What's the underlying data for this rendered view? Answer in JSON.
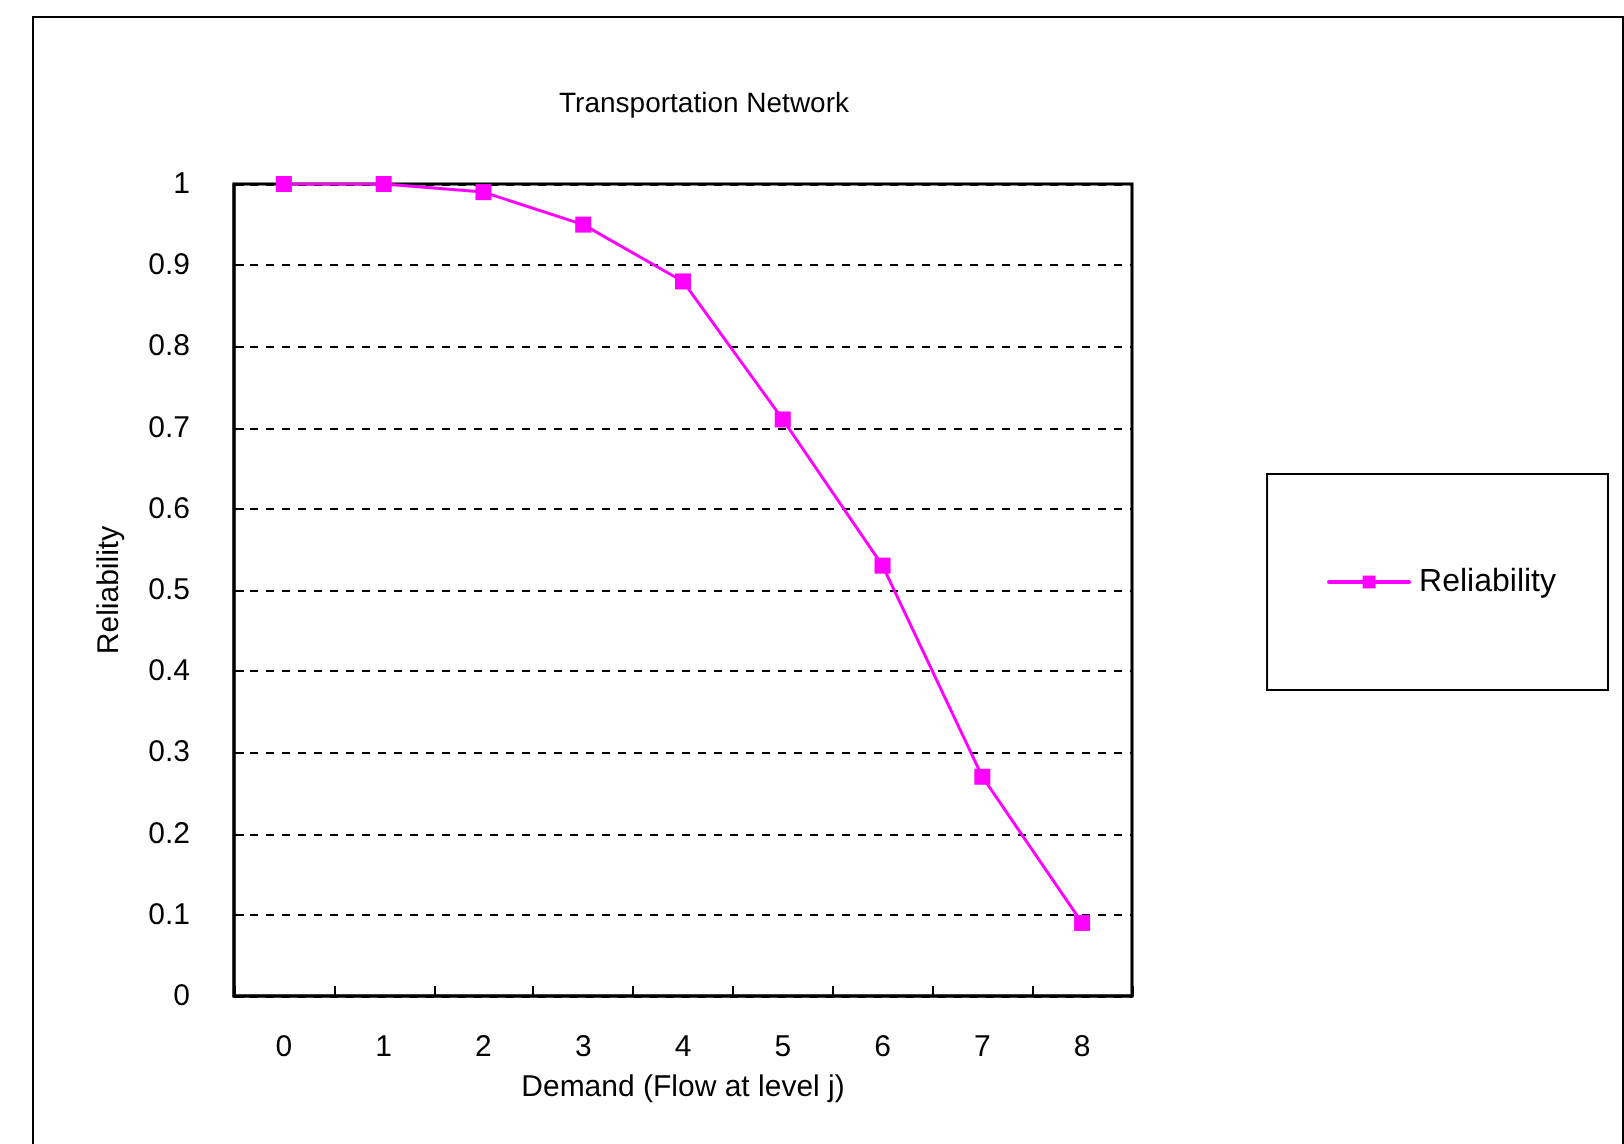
{
  "chart_data": {
    "type": "line",
    "title": "Transportation Network",
    "xlabel": "Demand (Flow at level j)",
    "ylabel": "Reliability",
    "categories": [
      "0",
      "1",
      "2",
      "3",
      "4",
      "5",
      "6",
      "7",
      "8"
    ],
    "series": [
      {
        "name": "Reliability",
        "color": "#ff00ff",
        "values": [
          1,
          1,
          0.99,
          0.95,
          0.88,
          0.71,
          0.53,
          0.27,
          0.09
        ]
      }
    ],
    "ylim": [
      0,
      1
    ],
    "yticks": [
      0,
      0.1,
      0.2,
      0.3,
      0.4,
      0.5,
      0.6,
      0.7,
      0.8,
      0.9,
      1
    ],
    "grid": "y",
    "legend": "right",
    "marker": "square",
    "line_style": "solid"
  }
}
